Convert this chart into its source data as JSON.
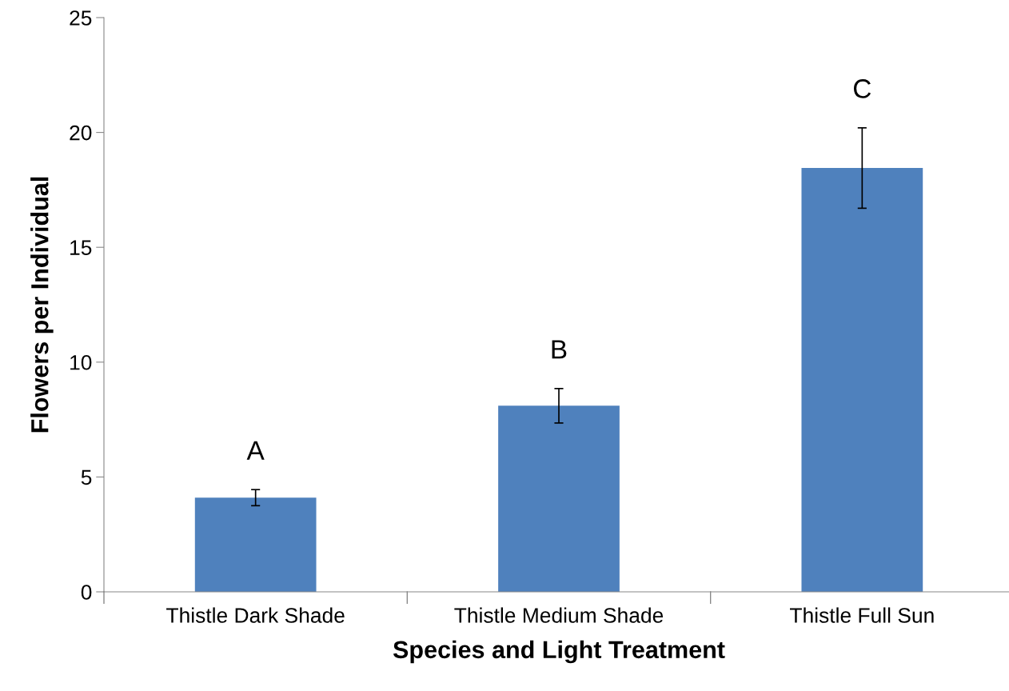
{
  "chart_data": {
    "type": "bar",
    "xlabel": "Species and Light Treatment",
    "ylabel": "Flowers per Individual",
    "categories": [
      "Thistle Dark Shade",
      "Thistle Medium Shade",
      "Thistle Full Sun"
    ],
    "values": [
      4.1,
      8.1,
      18.45
    ],
    "errors": [
      0.35,
      0.75,
      1.75
    ],
    "color": "#4f81bd",
    "ylim": [
      0,
      25
    ],
    "yticks": [
      0,
      5,
      10,
      15,
      20,
      25
    ],
    "grid": false,
    "legend": false,
    "annotations": [
      "A",
      "B",
      "C"
    ]
  }
}
